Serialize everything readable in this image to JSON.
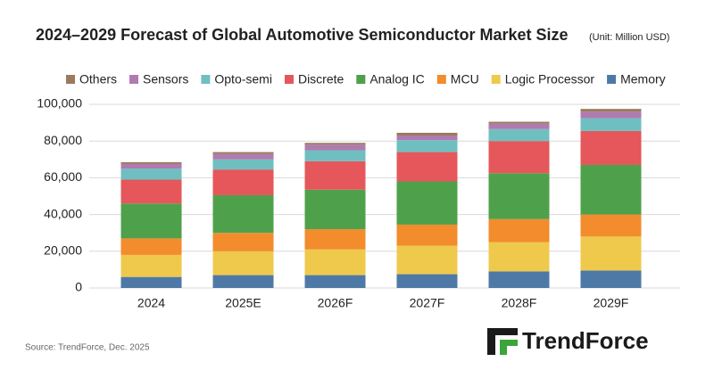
{
  "chart_data": {
    "type": "stacked_bar",
    "title": "2024–2029 Forecast of Global Automotive Semiconductor Market Size",
    "subtitle": "(Unit: Million USD)",
    "source": "Source: TrendForce, Dec.  2025",
    "logo": "TrendForce",
    "categories": [
      "2024",
      "2025E",
      "2026F",
      "2027F",
      "2028F",
      "2029F"
    ],
    "series": [
      {
        "name": "Others",
        "color": "#9b7a5e",
        "values": [
          1000,
          1000,
          1000,
          1500,
          1000,
          1500
        ]
      },
      {
        "name": "Sensors",
        "color": "#b07bb0",
        "values": [
          2500,
          3000,
          3000,
          2500,
          3000,
          3500
        ]
      },
      {
        "name": "Opto-semi",
        "color": "#6fbfc1",
        "values": [
          6000,
          5500,
          6000,
          6500,
          6500,
          7000
        ]
      },
      {
        "name": "Discrete",
        "color": "#e5575a",
        "values": [
          13000,
          14000,
          15500,
          16000,
          17500,
          18500
        ]
      },
      {
        "name": "Analog IC",
        "color": "#4ea14a",
        "values": [
          19000,
          20500,
          21500,
          23500,
          25000,
          27000
        ]
      },
      {
        "name": "MCU",
        "color": "#f28c2d",
        "values": [
          9000,
          10000,
          11000,
          11500,
          12500,
          12000
        ]
      },
      {
        "name": "Logic Processor",
        "color": "#efc94c",
        "values": [
          12000,
          13000,
          14000,
          15500,
          16000,
          18500
        ]
      },
      {
        "name": "Memory",
        "color": "#4e79a7",
        "values": [
          6000,
          7000,
          7000,
          7500,
          9000,
          9500
        ]
      }
    ],
    "ylim": [
      0,
      100000
    ],
    "yticks": [
      0,
      {
        "value": 20000,
        "label": "20,000"
      },
      {
        "value": 40000,
        "label": "40,000"
      },
      {
        "value": 60000,
        "label": "60,000"
      },
      {
        "value": 80000,
        "label": "80,000"
      },
      {
        "value": 100000,
        "label": "100,000"
      }
    ],
    "grid": true,
    "legend": "top"
  }
}
